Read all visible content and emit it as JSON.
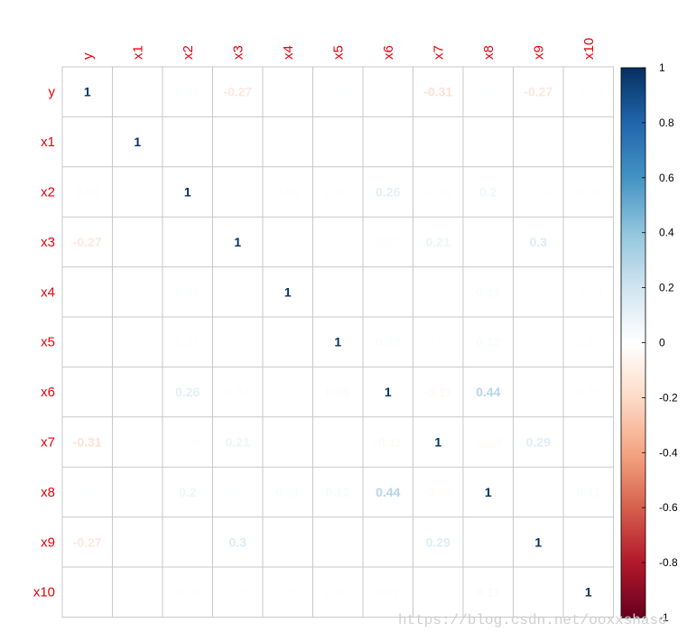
{
  "chart_data": {
    "type": "heatmap",
    "variables": [
      "y",
      "x1",
      "x2",
      "x3",
      "x4",
      "x5",
      "x6",
      "x7",
      "x8",
      "x9",
      "x10"
    ],
    "cells": [
      {
        "row": "y",
        "col": "y",
        "label": "1",
        "value": 1
      },
      {
        "row": "y",
        "col": "x2",
        "label": "0.08",
        "value": 0.08
      },
      {
        "row": "y",
        "col": "x3",
        "label": "-0.27",
        "value": -0.27
      },
      {
        "row": "y",
        "col": "x5",
        "label": "0.02",
        "value": 0.02
      },
      {
        "row": "y",
        "col": "x6",
        "label": "0.04",
        "value": 0.04
      },
      {
        "row": "y",
        "col": "x7",
        "label": "-0.31",
        "value": -0.31
      },
      {
        "row": "y",
        "col": "x8",
        "label": "0.02",
        "value": 0.02
      },
      {
        "row": "y",
        "col": "x9",
        "label": "-0.27",
        "value": -0.27
      },
      {
        "row": "y",
        "col": "x10",
        "label": "-0.03",
        "value": -0.03
      },
      {
        "row": "x1",
        "col": "x1",
        "label": "1",
        "value": 1
      },
      {
        "row": "x1",
        "col": "x6",
        "label": "-0.01",
        "value": -0.01
      },
      {
        "row": "x2",
        "col": "y",
        "label": "0.08",
        "value": 0.08
      },
      {
        "row": "x2",
        "col": "x2",
        "label": "1",
        "value": 1
      },
      {
        "row": "x2",
        "col": "x3",
        "label": "-0.02",
        "value": -0.02
      },
      {
        "row": "x2",
        "col": "x4",
        "label": "0.06",
        "value": 0.06
      },
      {
        "row": "x2",
        "col": "x5",
        "label": "0.07",
        "value": 0.07
      },
      {
        "row": "x2",
        "col": "x6",
        "label": "0.26",
        "value": 0.26
      },
      {
        "row": "x2",
        "col": "x7",
        "label": "-0.06",
        "value": -0.06
      },
      {
        "row": "x2",
        "col": "x8",
        "label": "0.2",
        "value": 0.2
      },
      {
        "row": "x2",
        "col": "x9",
        "label": "-0.04",
        "value": -0.04
      },
      {
        "row": "x2",
        "col": "x10",
        "label": "-0.06",
        "value": -0.06
      },
      {
        "row": "x3",
        "col": "y",
        "label": "-0.27",
        "value": -0.27
      },
      {
        "row": "x3",
        "col": "x2",
        "label": "-0.02",
        "value": -0.02
      },
      {
        "row": "x3",
        "col": "x3",
        "label": "1",
        "value": 1
      },
      {
        "row": "x3",
        "col": "x6",
        "label": "0.07",
        "value": 0.07
      },
      {
        "row": "x3",
        "col": "x7",
        "label": "0.21",
        "value": 0.21
      },
      {
        "row": "x3",
        "col": "x8",
        "label": "0.02",
        "value": 0.02
      },
      {
        "row": "x3",
        "col": "x9",
        "label": "0.3",
        "value": 0.3
      },
      {
        "row": "x3",
        "col": "x10",
        "label": "0.05",
        "value": 0.05
      },
      {
        "row": "x4",
        "col": "x2",
        "label": "0.06",
        "value": 0.06
      },
      {
        "row": "x4",
        "col": "x4",
        "label": "1",
        "value": 1
      },
      {
        "row": "x4",
        "col": "x5",
        "label": "-0.02",
        "value": -0.02
      },
      {
        "row": "x4",
        "col": "x6",
        "label": "0.05",
        "value": 0.05
      },
      {
        "row": "x4",
        "col": "x7",
        "label": "-0.01",
        "value": -0.01
      },
      {
        "row": "x4",
        "col": "x8",
        "label": "0.11",
        "value": 0.11
      },
      {
        "row": "x4",
        "col": "x10",
        "label": "-0.05",
        "value": -0.05
      },
      {
        "row": "x5",
        "col": "y",
        "label": "0.02",
        "value": 0.02
      },
      {
        "row": "x5",
        "col": "x2",
        "label": "0.07",
        "value": 0.07
      },
      {
        "row": "x5",
        "col": "x4",
        "label": "-0.02",
        "value": -0.02
      },
      {
        "row": "x5",
        "col": "x5",
        "label": "1",
        "value": 1
      },
      {
        "row": "x5",
        "col": "x6",
        "label": "0.09",
        "value": 0.09
      },
      {
        "row": "x5",
        "col": "x7",
        "label": "-0.02",
        "value": -0.02
      },
      {
        "row": "x5",
        "col": "x8",
        "label": "0.12",
        "value": 0.12
      },
      {
        "row": "x5",
        "col": "x9",
        "label": "-0.01",
        "value": -0.01
      },
      {
        "row": "x5",
        "col": "x10",
        "label": "0.07",
        "value": 0.07
      },
      {
        "row": "x6",
        "col": "y",
        "label": "0.04",
        "value": 0.04
      },
      {
        "row": "x6",
        "col": "x1",
        "label": "-0.01",
        "value": -0.01
      },
      {
        "row": "x6",
        "col": "x2",
        "label": "0.26",
        "value": 0.26
      },
      {
        "row": "x6",
        "col": "x3",
        "label": "0.07",
        "value": 0.07
      },
      {
        "row": "x6",
        "col": "x4",
        "label": "0.05",
        "value": 0.05
      },
      {
        "row": "x6",
        "col": "x5",
        "label": "0.09",
        "value": 0.09
      },
      {
        "row": "x6",
        "col": "x6",
        "label": "1",
        "value": 1
      },
      {
        "row": "x6",
        "col": "x7",
        "label": "-0.11",
        "value": -0.11
      },
      {
        "row": "x6",
        "col": "x8",
        "label": "0.44",
        "value": 0.44
      },
      {
        "row": "x6",
        "col": "x9",
        "label": "-0.02",
        "value": -0.02
      },
      {
        "row": "x6",
        "col": "x10",
        "label": "0.07",
        "value": 0.07
      },
      {
        "row": "x7",
        "col": "y",
        "label": "-0.31",
        "value": -0.31
      },
      {
        "row": "x7",
        "col": "x2",
        "label": "-0.06",
        "value": -0.06
      },
      {
        "row": "x7",
        "col": "x3",
        "label": "0.21",
        "value": 0.21
      },
      {
        "row": "x7",
        "col": "x4",
        "label": "-0.01",
        "value": -0.01
      },
      {
        "row": "x7",
        "col": "x5",
        "label": "-0.02",
        "value": -0.02
      },
      {
        "row": "x7",
        "col": "x6",
        "label": "-0.11",
        "value": -0.11
      },
      {
        "row": "x7",
        "col": "x7",
        "label": "1",
        "value": 1
      },
      {
        "row": "x7",
        "col": "x8",
        "label": "-0.08",
        "value": -0.08
      },
      {
        "row": "x7",
        "col": "x9",
        "label": "0.29",
        "value": 0.29
      },
      {
        "row": "x7",
        "col": "x10",
        "label": "0.02",
        "value": 0.02
      },
      {
        "row": "x8",
        "col": "y",
        "label": "0.02",
        "value": 0.02
      },
      {
        "row": "x8",
        "col": "x2",
        "label": "0.2",
        "value": 0.2
      },
      {
        "row": "x8",
        "col": "x3",
        "label": "0.02",
        "value": 0.02
      },
      {
        "row": "x8",
        "col": "x4",
        "label": "0.11",
        "value": 0.11
      },
      {
        "row": "x8",
        "col": "x5",
        "label": "0.12",
        "value": 0.12
      },
      {
        "row": "x8",
        "col": "x6",
        "label": "0.44",
        "value": 0.44
      },
      {
        "row": "x8",
        "col": "x7",
        "label": "-0.08",
        "value": -0.08
      },
      {
        "row": "x8",
        "col": "x8",
        "label": "1",
        "value": 1
      },
      {
        "row": "x8",
        "col": "x9",
        "label": "-0.03",
        "value": -0.03
      },
      {
        "row": "x8",
        "col": "x10",
        "label": "0.11",
        "value": 0.11
      },
      {
        "row": "x9",
        "col": "y",
        "label": "-0.27",
        "value": -0.27
      },
      {
        "row": "x9",
        "col": "x2",
        "label": "-0.04",
        "value": -0.04
      },
      {
        "row": "x9",
        "col": "x3",
        "label": "0.3",
        "value": 0.3
      },
      {
        "row": "x9",
        "col": "x5",
        "label": "-0.01",
        "value": -0.01
      },
      {
        "row": "x9",
        "col": "x6",
        "label": "-0.02",
        "value": -0.02
      },
      {
        "row": "x9",
        "col": "x7",
        "label": "0.29",
        "value": 0.29
      },
      {
        "row": "x9",
        "col": "x8",
        "label": "-0.03",
        "value": -0.03
      },
      {
        "row": "x9",
        "col": "x9",
        "label": "1",
        "value": 1
      },
      {
        "row": "x9",
        "col": "x10",
        "label": "0.02",
        "value": 0.02
      },
      {
        "row": "x10",
        "col": "y",
        "label": "-0.03",
        "value": -0.03
      },
      {
        "row": "x10",
        "col": "x2",
        "label": "-0.06",
        "value": -0.06
      },
      {
        "row": "x10",
        "col": "x3",
        "label": "0.05",
        "value": 0.05
      },
      {
        "row": "x10",
        "col": "x4",
        "label": "-0.05",
        "value": -0.05
      },
      {
        "row": "x10",
        "col": "x5",
        "label": "0.07",
        "value": 0.07
      },
      {
        "row": "x10",
        "col": "x6",
        "label": "0.07",
        "value": 0.07
      },
      {
        "row": "x10",
        "col": "x7",
        "label": "0.02",
        "value": 0.02
      },
      {
        "row": "x10",
        "col": "x8",
        "label": "0.11",
        "value": 0.11
      },
      {
        "row": "x10",
        "col": "x9",
        "label": "0.02",
        "value": 0.02
      },
      {
        "row": "x10",
        "col": "x10",
        "label": "1",
        "value": 1
      }
    ],
    "colorbar": {
      "range": [
        -1,
        1
      ],
      "ticks": [
        "1",
        "0.8",
        "0.6",
        "0.4",
        "0.2",
        "0",
        "-0.2",
        "-0.4",
        "-0.6",
        "-0.8",
        "-1"
      ],
      "placement": "right"
    },
    "label_color": "#e8000b",
    "grid": true
  },
  "watermark": "https://blog.csdn.net/ooxxshaso"
}
